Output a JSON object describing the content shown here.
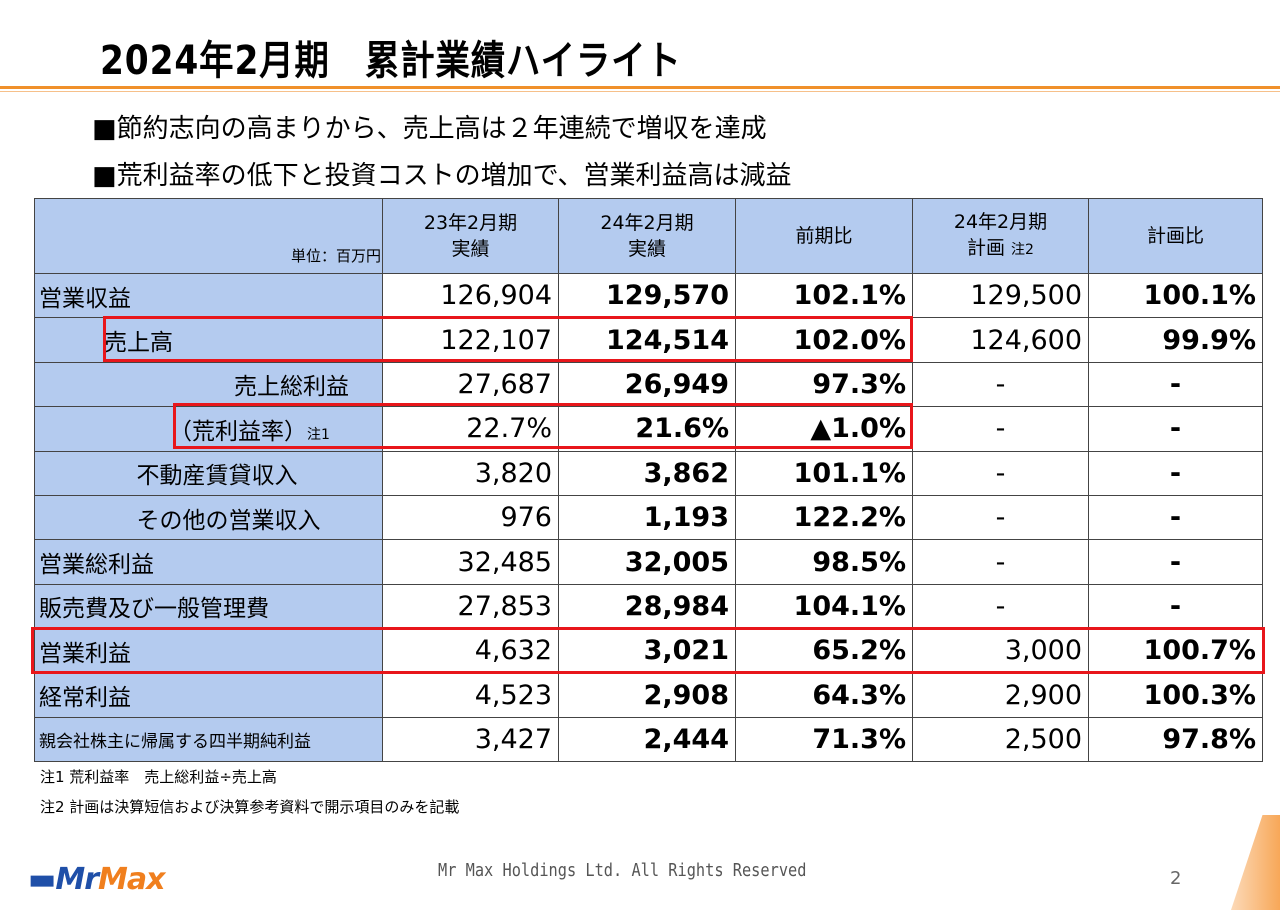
{
  "title": "2024年2月期　累計業績ハイライト",
  "bullets": [
    "■節約志向の高まりから、売上高は２年連続で増収を達成",
    "■荒利益率の低下と投資コストの増加で、営業利益高は減益"
  ],
  "table": {
    "unit": "単位：百万円",
    "headers": [
      [
        "23年2月期",
        "実績"
      ],
      [
        "24年2月期",
        "実績"
      ],
      [
        "前期比",
        ""
      ],
      [
        "24年2月期",
        "計画"
      ],
      [
        "計画比",
        ""
      ]
    ],
    "header_note": "注2",
    "rows": [
      {
        "label": "営業収益",
        "indent": 0,
        "values": [
          "126,904",
          "129,570",
          "102.1%",
          "129,500",
          "100.1%"
        ]
      },
      {
        "label": "売上高",
        "indent": 1,
        "values": [
          "122,107",
          "124,514",
          "102.0%",
          "124,600",
          "99.9%"
        ]
      },
      {
        "label": "売上総利益",
        "indent": 3,
        "values": [
          "27,687",
          "26,949",
          "97.3%",
          "-",
          "-"
        ]
      },
      {
        "label": "（荒利益率）",
        "note": "注1",
        "indent": 2,
        "values": [
          "22.7%",
          "21.6%",
          "▲1.0%",
          "-",
          "-"
        ]
      },
      {
        "label": "不動産賃貸収入",
        "indent": 1.5,
        "values": [
          "3,820",
          "3,862",
          "101.1%",
          "-",
          "-"
        ]
      },
      {
        "label": "その他の営業収入",
        "indent": 1.5,
        "values": [
          "976",
          "1,193",
          "122.2%",
          "-",
          "-"
        ]
      },
      {
        "label": "営業総利益",
        "indent": 0,
        "values": [
          "32,485",
          "32,005",
          "98.5%",
          "-",
          "-"
        ]
      },
      {
        "label": "販売費及び一般管理費",
        "indent": 0,
        "values": [
          "27,853",
          "28,984",
          "104.1%",
          "-",
          "-"
        ]
      },
      {
        "label": "営業利益",
        "indent": 0,
        "values": [
          "4,632",
          "3,021",
          "65.2%",
          "3,000",
          "100.7%"
        ]
      },
      {
        "label": "経常利益",
        "indent": 0,
        "values": [
          "4,523",
          "2,908",
          "64.3%",
          "2,900",
          "100.3%"
        ]
      },
      {
        "label": "親会社株主に帰属する四半期純利益",
        "indent": 0,
        "small": true,
        "values": [
          "3,427",
          "2,444",
          "71.3%",
          "2,500",
          "97.8%"
        ]
      }
    ]
  },
  "notes": [
    "注1 荒利益率　売上総利益÷売上高",
    "注2 計画は決算短信および決算参考資料で開示項目のみを記載"
  ],
  "footer": "Mr Max Holdings Ltd. All Rights Reserved",
  "page_number": "2",
  "logo_text": "MrMax",
  "colors": {
    "accent": "#f0902a",
    "header_bg": "#b4cbef",
    "highlight": "#e8161b",
    "logo_blue": "#1f4fa8",
    "logo_orange": "#f07f1e"
  }
}
